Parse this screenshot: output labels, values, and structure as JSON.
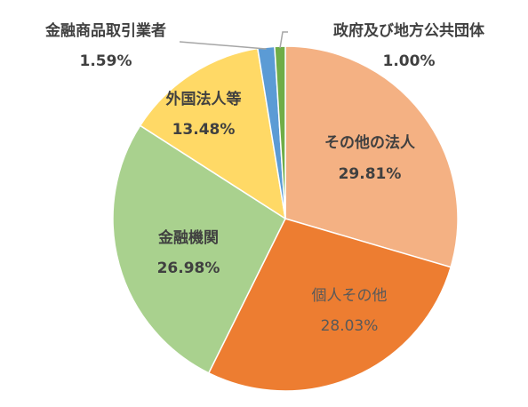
{
  "chart_data": {
    "type": "pie",
    "title": "",
    "start_angle_deg": 0,
    "direction": "clockwise",
    "slices": [
      {
        "name": "その他の法人",
        "value": 29.81,
        "value_label": "29.81%",
        "color": "#f4b183"
      },
      {
        "name": "個人その他",
        "value": 28.03,
        "value_label": "28.03%",
        "color": "#ed7d31"
      },
      {
        "name": "金融機関",
        "value": 26.98,
        "value_label": "26.98%",
        "color": "#a9d18e"
      },
      {
        "name": "外国法人等",
        "value": 13.48,
        "value_label": "13.48%",
        "color": "#ffd966"
      },
      {
        "name": "金融商品取引業者",
        "value": 1.59,
        "value_label": "1.59%",
        "color": "#5b9bd5"
      },
      {
        "name": "政府及び地方公共団体",
        "value": 1.0,
        "value_label": "1.00%",
        "color": "#70ad47"
      }
    ],
    "leader_line_color": "#a6a6a6",
    "slice_border_color": "#ffffff"
  }
}
